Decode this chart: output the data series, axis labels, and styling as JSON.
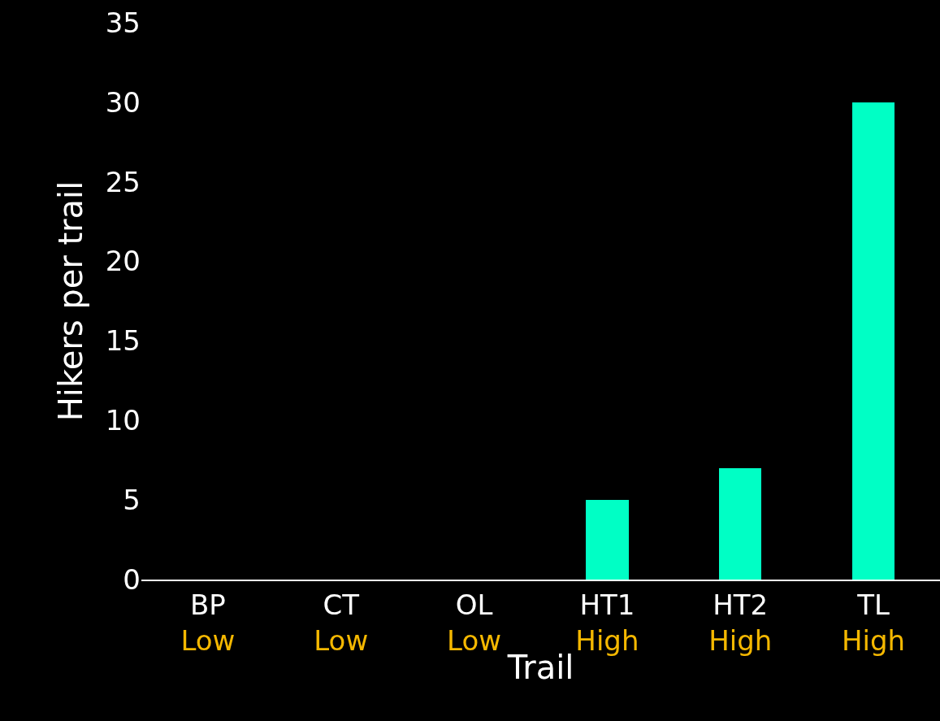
{
  "chart_data": {
    "type": "bar",
    "categories": [
      "BP\nLow",
      "CT\nLow",
      "OL\nLow",
      "HT1\nHigh",
      "HT2\nHigh",
      "TL\nHigh"
    ],
    "values": [
      0,
      0,
      0,
      5,
      7,
      30
    ],
    "color": "#00ffc5",
    "xlabel": "Trail",
    "ylabel": "Hikers per trail",
    "ylim": [
      0,
      35
    ],
    "yticks": [
      0,
      5,
      10,
      15,
      20,
      25,
      30,
      35
    ],
    "grid": false
  }
}
